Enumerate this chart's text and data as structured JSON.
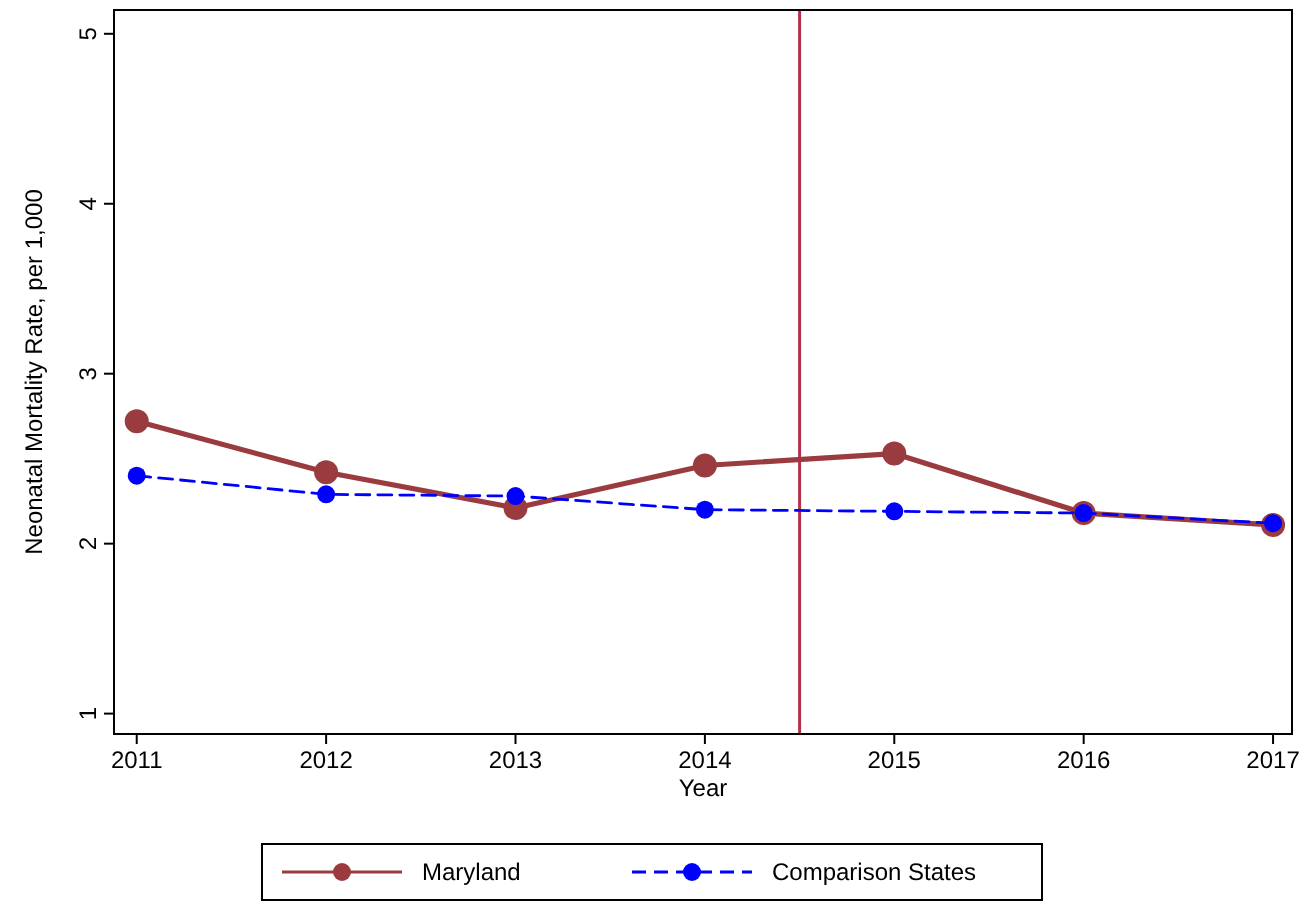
{
  "chart_data": {
    "type": "line",
    "xlabel": "Year",
    "ylabel": "Neonatal Mortality Rate, per 1,000",
    "x": [
      2011,
      2012,
      2013,
      2014,
      2015,
      2016,
      2017
    ],
    "series": [
      {
        "name": "Maryland",
        "color": "#9a3b3f",
        "values": [
          2.72,
          2.42,
          2.21,
          2.46,
          2.53,
          2.18,
          2.11
        ],
        "line_style": "solid"
      },
      {
        "name": "Comparison States",
        "color": "#0000ff",
        "values": [
          2.4,
          2.29,
          2.28,
          2.2,
          2.19,
          2.18,
          2.12
        ],
        "line_style": "dashed"
      }
    ],
    "xlim": [
      2010.88,
      2017.1
    ],
    "ylim": [
      0.88,
      5.14
    ],
    "xticks": [
      2011,
      2012,
      2013,
      2014,
      2015,
      2016,
      2017
    ],
    "yticks": [
      1,
      2,
      3,
      4,
      5
    ],
    "ref_lines": [
      {
        "axis": "x",
        "value": 2014.5,
        "color": "#b5314e"
      }
    ],
    "marker": "circle",
    "grid": false,
    "legend": "bottom"
  }
}
